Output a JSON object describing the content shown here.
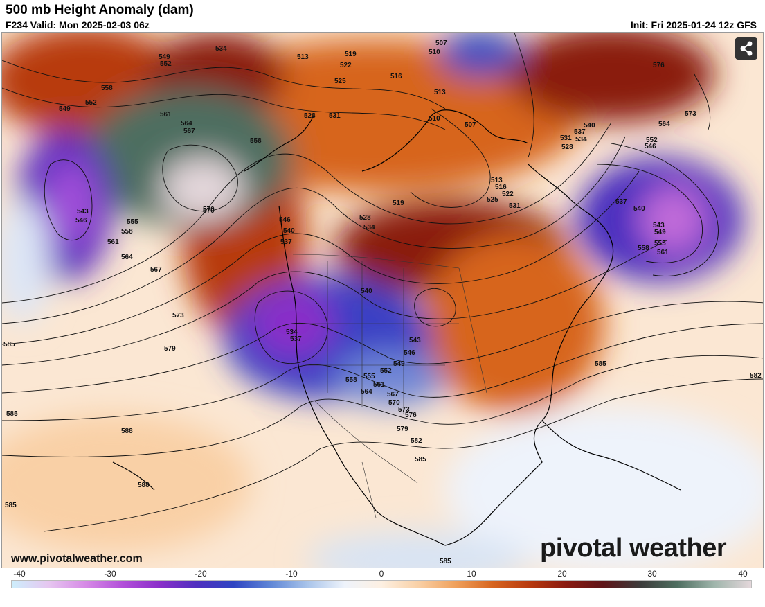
{
  "header": {
    "title": "500 mb Height Anomaly (dam)",
    "valid": "F234 Valid: Mon 2025-02-03 06z",
    "init": "Init: Fri 2025-01-24 12z GFS"
  },
  "footer": {
    "url": "www.pivotalweather.com",
    "brand": "pivotal weather"
  },
  "share_icon": "share-icon",
  "colorbar": {
    "ticks": [
      "-40",
      "-30",
      "-20",
      "-10",
      "0",
      "10",
      "20",
      "30",
      "40"
    ],
    "colors": [
      "#cdeefc",
      "#e6c6f0",
      "#d68ae6",
      "#b24fd9",
      "#8a2fc9",
      "#4f2fbf",
      "#2f45c2",
      "#5f86d6",
      "#a9c4ea",
      "#eef3fb",
      "#fdf0e2",
      "#f9d0a6",
      "#f0a15c",
      "#d7651f",
      "#b83a0f",
      "#8a1a10",
      "#5e1418",
      "#3c3b3b",
      "#4e6e60",
      "#9fb5ab",
      "#e4d7db"
    ]
  },
  "map_labels": [
    "534",
    "549",
    "552",
    "513",
    "519",
    "522",
    "507",
    "510",
    "525",
    "516",
    "513",
    "576",
    "558",
    "549",
    "552",
    "561",
    "564",
    "567",
    "558",
    "528",
    "531",
    "510",
    "507",
    "573",
    "564",
    "570",
    "543",
    "546",
    "555",
    "558",
    "561",
    "564",
    "567",
    "540",
    "537",
    "534",
    "531",
    "528",
    "552",
    "546",
    "546",
    "540",
    "537",
    "528",
    "534",
    "519",
    "513",
    "516",
    "525",
    "522",
    "531",
    "537",
    "540",
    "543",
    "549",
    "555",
    "558",
    "561",
    "570",
    "573",
    "579",
    "540",
    "534",
    "537",
    "543",
    "546",
    "549",
    "552",
    "555",
    "558",
    "561",
    "564",
    "567",
    "570",
    "573",
    "576",
    "579",
    "582",
    "585",
    "582",
    "585",
    "588",
    "588",
    "585",
    "585",
    "585",
    "585"
  ]
}
